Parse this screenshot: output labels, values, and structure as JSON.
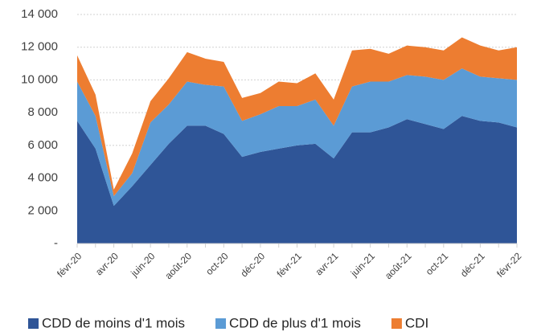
{
  "chart_data": {
    "type": "stacked-area",
    "categories": [
      "févr-20",
      null,
      "avr-20",
      null,
      "juin-20",
      null,
      "août-20",
      null,
      "oct-20",
      null,
      "déc-20",
      null,
      "févr-21",
      null,
      "avr-21",
      null,
      "juin-21",
      null,
      "août-21",
      null,
      "oct-21",
      null,
      "déc-21",
      null,
      "févr-22"
    ],
    "series": [
      {
        "name": "CDD de moins d'1 mois",
        "color": "#2f5597",
        "values": [
          7500,
          5800,
          2300,
          3500,
          4800,
          6100,
          7200,
          7200,
          6700,
          5300,
          5600,
          5800,
          6000,
          6100,
          5200,
          6800,
          6800,
          7100,
          7600,
          7300,
          7000,
          7800,
          7500,
          7400,
          7100
        ]
      },
      {
        "name": "CDD de plus d'1 mois",
        "color": "#5b9bd5",
        "values": [
          2400,
          2000,
          600,
          800,
          2600,
          2400,
          2700,
          2500,
          2900,
          2200,
          2300,
          2600,
          2400,
          2700,
          2000,
          2800,
          3100,
          2800,
          2700,
          2900,
          3000,
          2900,
          2700,
          2700,
          2900
        ]
      },
      {
        "name": "CDI",
        "color": "#ed7d31",
        "values": [
          1600,
          1300,
          400,
          1200,
          1300,
          1600,
          1800,
          1600,
          1500,
          1400,
          1300,
          1500,
          1400,
          1600,
          1600,
          2200,
          2000,
          1700,
          1800,
          1800,
          1800,
          1900,
          1900,
          1700,
          2000
        ]
      }
    ],
    "ylim": [
      0,
      14000
    ],
    "yticks": [
      {
        "value": 0,
        "label": "-"
      },
      {
        "value": 2000,
        "label": "2 000"
      },
      {
        "value": 4000,
        "label": "4 000"
      },
      {
        "value": 6000,
        "label": "6 000"
      },
      {
        "value": 8000,
        "label": "8 000"
      },
      {
        "value": 10000,
        "label": "10 000"
      },
      {
        "value": 12000,
        "label": "12 000"
      },
      {
        "value": 14000,
        "label": "14 000"
      }
    ],
    "grid": true,
    "legend": "bottom"
  }
}
